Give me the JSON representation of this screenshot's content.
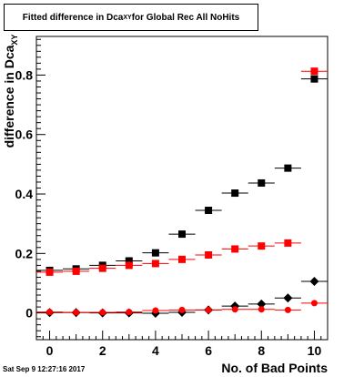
{
  "title": {
    "prefix": "Fitted difference in Dca",
    "sub": "XY",
    "suffix": " for Global Rec All NoHits"
  },
  "ylabel": {
    "prefix": "difference in Dca",
    "sub": "XY"
  },
  "xlabel": "No. of Bad Points",
  "datestamp": "Sat Sep  9 12:27:16 2017",
  "chart_data": {
    "type": "scatter",
    "xlim": [
      -0.5,
      10.5
    ],
    "ylim": [
      -0.09,
      0.93
    ],
    "x_ticks": [
      0,
      2,
      4,
      6,
      8,
      10
    ],
    "y_ticks": [
      0,
      0.2,
      0.4,
      0.6,
      0.8
    ],
    "grid": false,
    "series": [
      {
        "marker": "square",
        "color": "#000000",
        "x": [
          0,
          1,
          2,
          3,
          4,
          5,
          6,
          7,
          8,
          9,
          10
        ],
        "y": [
          0.143,
          0.148,
          0.16,
          0.175,
          0.202,
          0.265,
          0.345,
          0.403,
          0.437,
          0.487,
          0.787
        ]
      },
      {
        "marker": "square",
        "color": "#ff0000",
        "x": [
          0,
          1,
          2,
          3,
          4,
          5,
          6,
          7,
          8,
          9,
          10
        ],
        "y": [
          0.137,
          0.14,
          0.15,
          0.16,
          0.166,
          0.18,
          0.195,
          0.215,
          0.225,
          0.235,
          0.813
        ]
      },
      {
        "marker": "diamond",
        "color": "#000000",
        "x": [
          0,
          1,
          2,
          3,
          4,
          5,
          6,
          7,
          8,
          9,
          10
        ],
        "y": [
          0.001,
          0.001,
          0.0,
          0.0,
          -0.001,
          0.002,
          0.01,
          0.023,
          0.03,
          0.05,
          0.106
        ]
      },
      {
        "marker": "circle",
        "color": "#ff0000",
        "x": [
          0,
          1,
          2,
          3,
          4,
          5,
          6,
          7,
          8,
          9,
          10
        ],
        "y": [
          0.003,
          0.002,
          0.002,
          0.003,
          0.008,
          0.01,
          0.01,
          0.012,
          0.012,
          0.01,
          0.033
        ]
      }
    ]
  }
}
